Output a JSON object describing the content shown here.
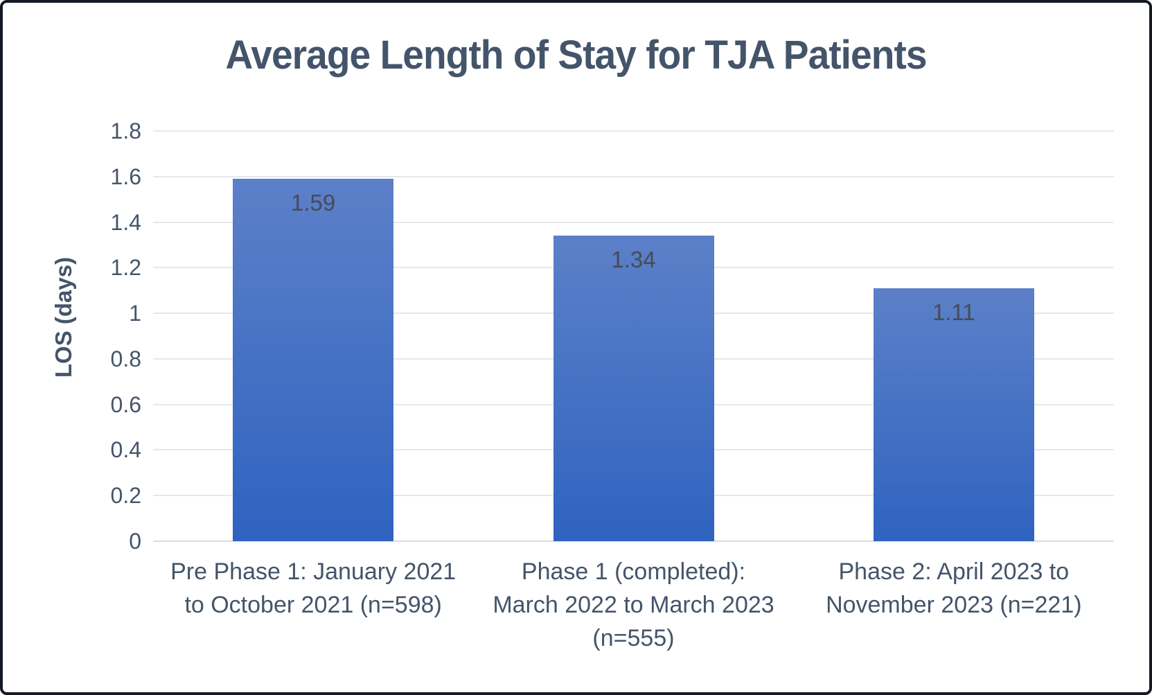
{
  "chart_data": {
    "type": "bar",
    "title": "Average Length of Stay for TJA Patients",
    "xlabel": "",
    "ylabel": "LOS (days)",
    "ylim": [
      0,
      1.8
    ],
    "ytick_labels": [
      "0",
      "0.2",
      "0.4",
      "0.6",
      "0.8",
      "1",
      "1.2",
      "1.4",
      "1.6",
      "1.8"
    ],
    "grid": true,
    "legend": "none",
    "categories": [
      "Pre Phase 1: January 2021\nto October 2021 (n=598)",
      "Phase 1 (completed):\nMarch 2022 to March 2023\n(n=555)",
      "Phase 2: April 2023 to\nNovember 2023 (n=221)"
    ],
    "values": [
      1.59,
      1.34,
      1.11
    ],
    "data_labels": [
      "1.59",
      "1.34",
      "1.11"
    ]
  },
  "colors": {
    "bar_gradient_top": "#5c80c8",
    "bar_gradient_bottom": "#2f63c0",
    "text": "#44546A",
    "data_label": "#464b54",
    "gridline": "#e4e8ee",
    "axis_line": "#d7dde6",
    "frame_border": "#141924"
  }
}
